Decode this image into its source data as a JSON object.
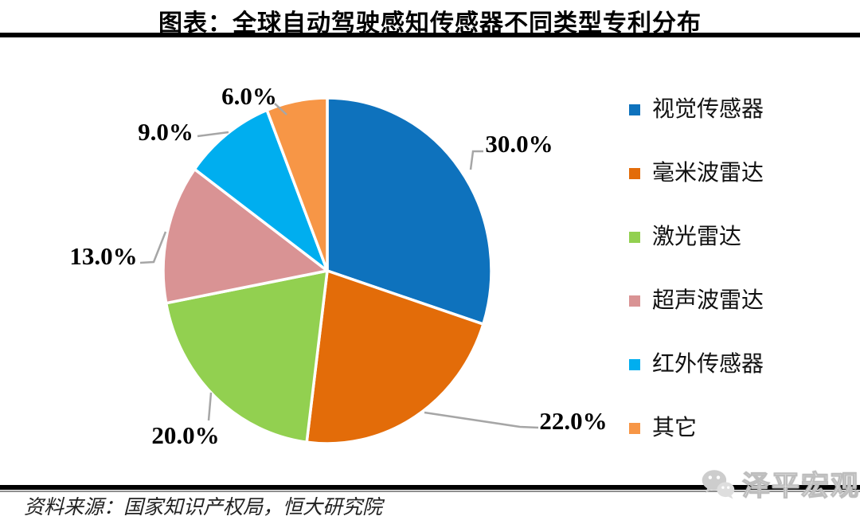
{
  "title": "图表：全球自动驾驶感知传感器不同类型专利分布",
  "source_note": "资料来源：国家知识产权局，恒大研究院",
  "watermark": {
    "text": "泽平宏观",
    "icon": "wechat-icon"
  },
  "colors": {
    "leader_line": "#A6A6A6",
    "slice_gap_stroke": "#FFFFFF",
    "rule_black": "#000000",
    "rule_gray": "#8F8F8F"
  },
  "chart_data": {
    "type": "pie",
    "title": "全球自动驾驶感知传感器不同类型专利分布",
    "direction": "clockwise",
    "start_angle_deg": 0,
    "legend_position": "right",
    "slices": [
      {
        "label": "视觉传感器",
        "value": 30.0,
        "display": "30.0%",
        "color": "#0E72BD"
      },
      {
        "label": "毫米波雷达",
        "value": 22.0,
        "display": "22.0%",
        "color": "#E36C09"
      },
      {
        "label": "激光雷达",
        "value": 20.0,
        "display": "20.0%",
        "color": "#92D050"
      },
      {
        "label": "超声波雷达",
        "value": 13.0,
        "display": "13.0%",
        "color": "#D99394"
      },
      {
        "label": "红外传感器",
        "value": 9.0,
        "display": "9.0%",
        "color": "#00AEEF"
      },
      {
        "label": "其它",
        "value": 6.0,
        "display": "6.0%",
        "color": "#F79646"
      }
    ]
  }
}
